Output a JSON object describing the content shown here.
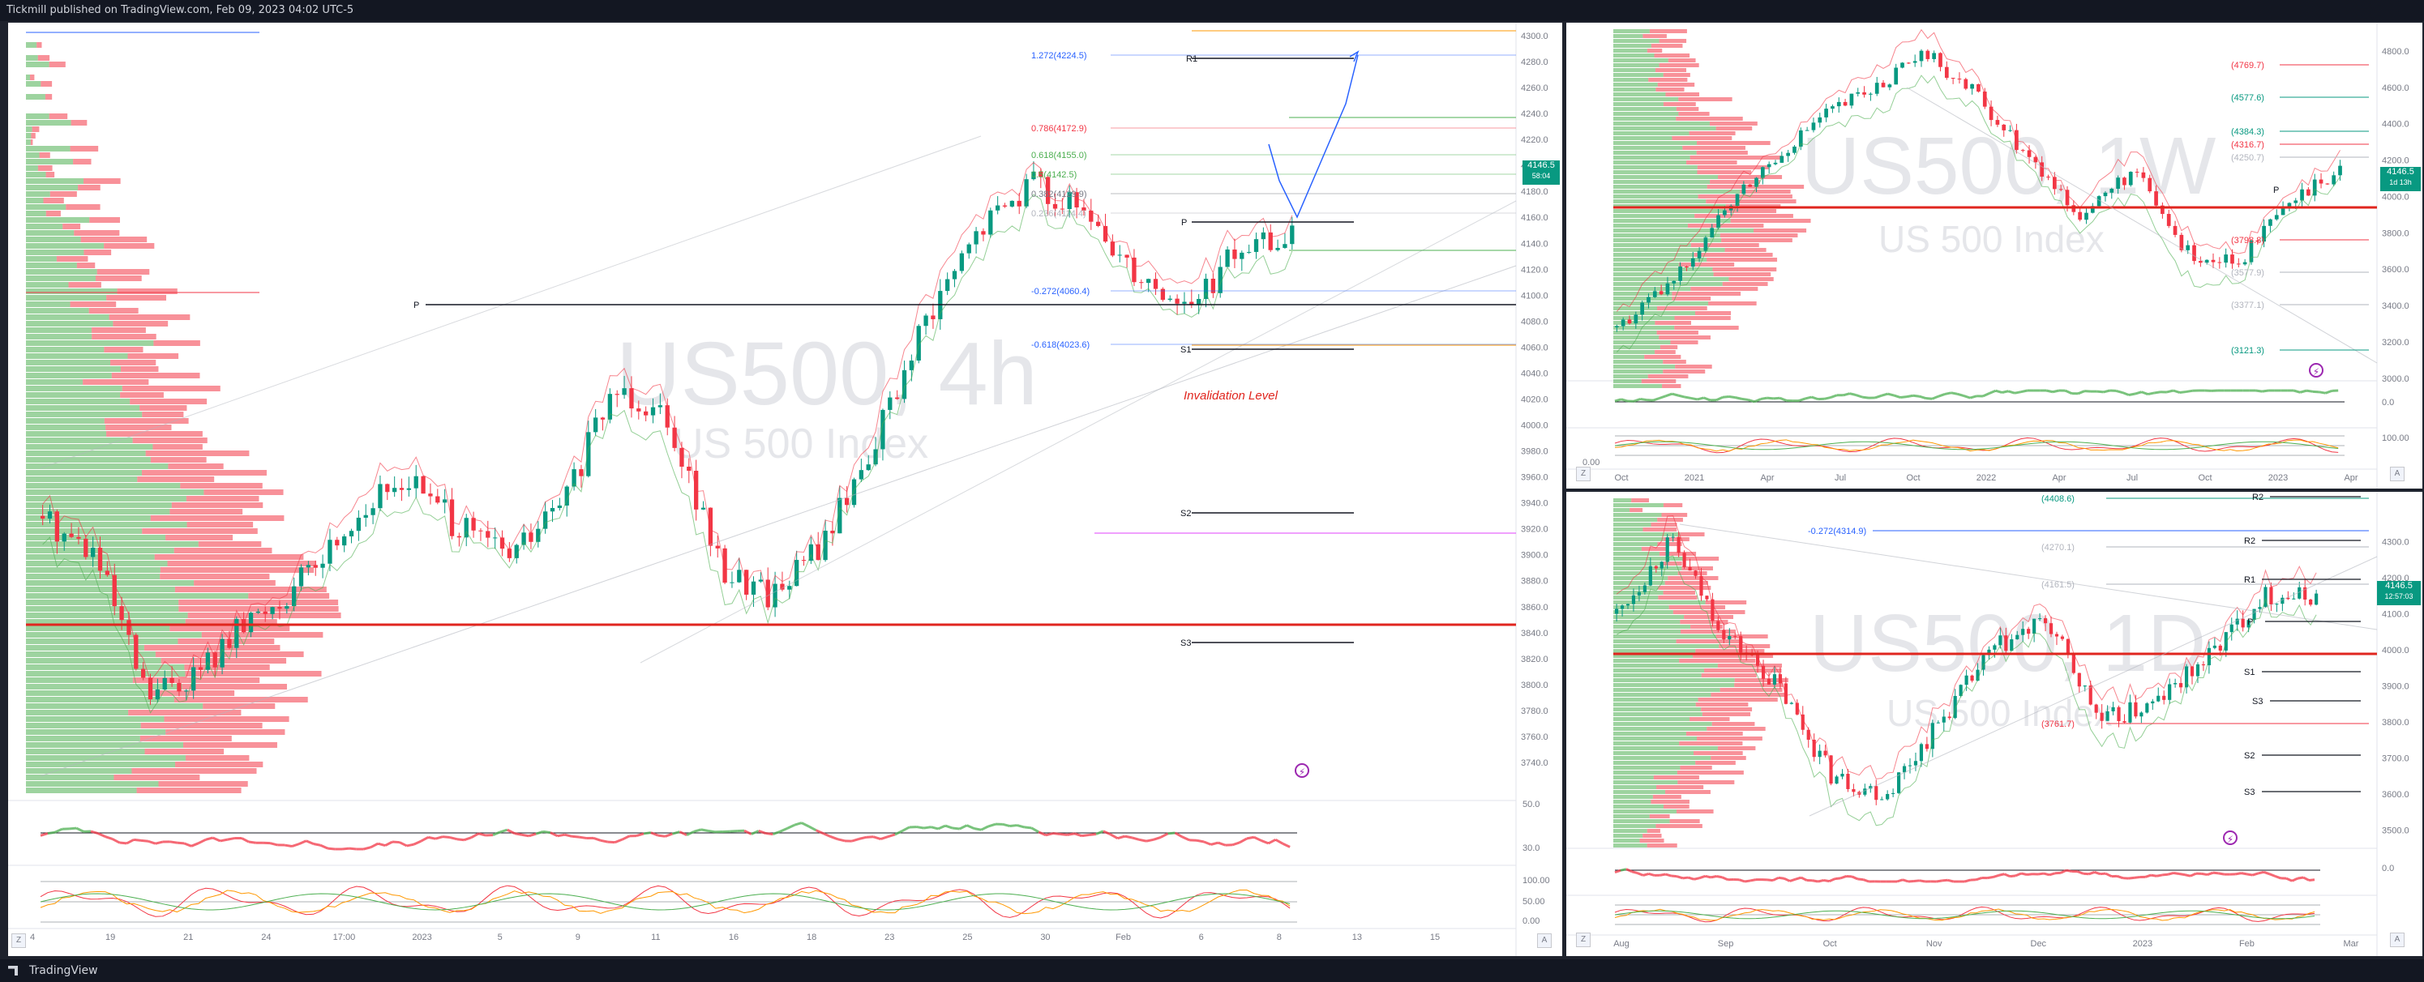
{
  "header": {
    "title": "Tickmill published on TradingView.com, Feb 09, 2023 04:02 UTC-5"
  },
  "footer": {
    "brand": "TradingView"
  },
  "chart_data": [
    {
      "type": "candlestick",
      "watermark": {
        "symbol": "US500, 4h",
        "name": "US 500 Index"
      },
      "y_ticks": [
        "4300.0",
        "4280.0",
        "4260.0",
        "4240.0",
        "4220.0",
        "4200.0",
        "4180.0",
        "4160.0",
        "4140.0",
        "4120.0",
        "4100.0",
        "4080.0",
        "4060.0",
        "4040.0",
        "4020.0",
        "4000.0",
        "3980.0",
        "3960.0",
        "3940.0",
        "3920.0",
        "3900.0",
        "3880.0",
        "3860.0",
        "3840.0",
        "3820.0",
        "3800.0",
        "3780.0",
        "3760.0",
        "3740.0"
      ],
      "ylim": [
        3720,
        4305
      ],
      "x_ticks": [
        "4",
        "19",
        "21",
        "24",
        "17:00",
        "2023",
        "5",
        "9",
        "11",
        "16",
        "18",
        "23",
        "25",
        "30",
        "Feb",
        "6",
        "8",
        "13",
        "15"
      ],
      "fib_levels": [
        {
          "label": "1.272(4224.5)",
          "value": 4224.5,
          "color": "#2962ff"
        },
        {
          "label": "0.786(4172.9)",
          "value": 4172.9,
          "color": "#f23645"
        },
        {
          "label": "0.618(4155.0)",
          "value": 4155.0,
          "color": "#4caf50"
        },
        {
          "label": "0.5(4142.5)",
          "value": 4142.5,
          "color": "#4caf50"
        },
        {
          "label": "0.382(4129.9)",
          "value": 4129.9,
          "color": "#787b86"
        },
        {
          "label": "0.236(4114.4)",
          "value": 4114.4,
          "color": "#b2b5be"
        },
        {
          "label": "-0.272(4060.4)",
          "value": 4060.4,
          "color": "#2962ff"
        },
        {
          "label": "-0.618(4023.6)",
          "value": 4023.6,
          "color": "#2962ff"
        }
      ],
      "pivots": [
        {
          "label": "R1",
          "value": 4222
        },
        {
          "label": "P",
          "value": 4108
        },
        {
          "label": "P",
          "value": 4055
        },
        {
          "label": "S1",
          "value": 4020
        },
        {
          "label": "S2",
          "value": 3908
        },
        {
          "label": "S3",
          "value": 3812
        }
      ],
      "annotation": "Invalidation Level",
      "last_price": "4146.5",
      "countdown": "58:04",
      "rsi_levels": [
        "50.0",
        "30.0"
      ],
      "stoch_levels": [
        "100.00",
        "50.00",
        "0.00"
      ]
    },
    {
      "type": "candlestick",
      "watermark": {
        "symbol": "US500, 1W",
        "name": "US 500 Index"
      },
      "y_ticks": [
        "4800.0",
        "4600.0",
        "4400.0",
        "4200.0",
        "4000.0",
        "3800.0",
        "3600.0",
        "3400.0",
        "3200.0",
        "3000.0"
      ],
      "ylim": [
        2950,
        4920
      ],
      "x_ticks": [
        "Oct",
        "2021",
        "Apr",
        "Jul",
        "Oct",
        "2022",
        "Apr",
        "Jul",
        "Oct",
        "2023",
        "Apr"
      ],
      "levels": [
        {
          "label": "(4769.7)",
          "value": 4769.7,
          "color": "#f23645"
        },
        {
          "label": "(4577.6)",
          "value": 4577.6,
          "color": "#089981"
        },
        {
          "label": "(4384.3)",
          "value": 4384.3,
          "color": "#089981"
        },
        {
          "label": "(4316.7)",
          "value": 4316.7,
          "color": "#f23645"
        },
        {
          "label": "(4250.7)",
          "value": 4250.7,
          "color": "#b2b5be"
        },
        {
          "label": "(3798.8)",
          "value": 3798.8,
          "color": "#f23645"
        },
        {
          "label": "(3577.9)",
          "value": 3577.9,
          "color": "#b2b5be"
        },
        {
          "label": "(3377.1)",
          "value": 3377.1,
          "color": "#b2b5be"
        },
        {
          "label": "(3121.3)",
          "value": 3121.3,
          "color": "#089981"
        }
      ],
      "pivot_label": "P",
      "last_price": "4146.5",
      "countdown": "1d 13h",
      "rsi_levels": [
        "0.0"
      ],
      "stoch_levels": [
        "100.00",
        "0.00"
      ]
    },
    {
      "type": "candlestick",
      "watermark": {
        "symbol": "US500, 1D",
        "name": "US 500 Index"
      },
      "y_ticks": [
        "4300.0",
        "4200.0",
        "4100.0",
        "4000.0",
        "3900.0",
        "3800.0",
        "3700.0",
        "3600.0",
        "3500.0"
      ],
      "ylim": [
        3450,
        4420
      ],
      "x_ticks": [
        "Aug",
        "Sep",
        "Oct",
        "Nov",
        "Dec",
        "2023",
        "Feb",
        "Mar"
      ],
      "levels": [
        {
          "label": "(4408.6)",
          "value": 4408.6,
          "color": "#089981"
        },
        {
          "label": "-0.272(4314.9)",
          "value": 4314.9,
          "color": "#2962ff"
        },
        {
          "label": "(4270.1)",
          "value": 4270.1,
          "color": "#b2b5be"
        },
        {
          "label": "(4161.5)",
          "value": 4161.5,
          "color": "#b2b5be"
        },
        {
          "label": "(3761.7)",
          "value": 3761.7,
          "color": "#f23645"
        }
      ],
      "pivots": [
        {
          "label": "R2",
          "value": 4418
        },
        {
          "label": "R2",
          "value": 4282
        },
        {
          "label": "R1",
          "value": 4166
        },
        {
          "label": "P",
          "value": 4110
        },
        {
          "label": "S1",
          "value": 3886
        },
        {
          "label": "S3",
          "value": 3830
        },
        {
          "label": "S2",
          "value": 3690
        },
        {
          "label": "S3",
          "value": 3580
        }
      ],
      "last_price": "4146.5",
      "countdown": "12:57:03",
      "rsi_levels": [
        "0.0"
      ],
      "stoch_levels": []
    }
  ]
}
